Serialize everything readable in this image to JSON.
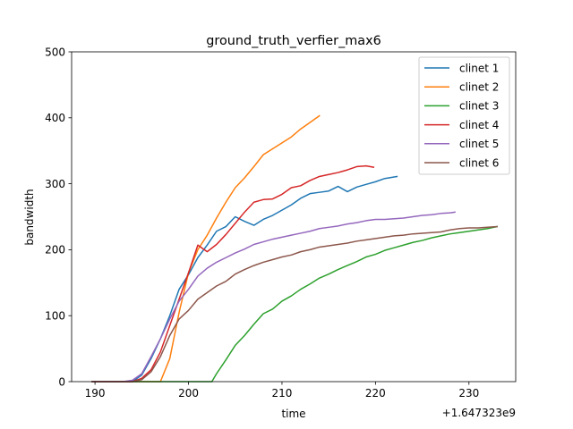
{
  "chart_data": {
    "type": "line",
    "title": "ground_truth_verfier_max6",
    "xlabel": "time",
    "ylabel": "bandwidth",
    "x_offset_label": "+1.647323e9",
    "xlim": [
      187.5,
      235.0
    ],
    "ylim": [
      0,
      500
    ],
    "xticks": [
      190,
      200,
      210,
      220,
      230
    ],
    "xtick_labels": [
      "190",
      "200",
      "210",
      "220",
      "230"
    ],
    "yticks": [
      0,
      100,
      200,
      300,
      400,
      500
    ],
    "ytick_labels": [
      "0",
      "100",
      "200",
      "300",
      "400",
      "500"
    ],
    "grid": false,
    "legend_position": "top-right",
    "series": [
      {
        "name": "clinet 1",
        "color": "#1f77b4",
        "x": [
          189.7,
          193.0,
          194.0,
          195.0,
          196.0,
          197.0,
          198.0,
          199.0,
          200.0,
          201.0,
          202.0,
          203.0,
          204.0,
          205.0,
          206.0,
          207.0,
          208.0,
          209.0,
          210.0,
          211.0,
          212.0,
          213.0,
          214.0,
          215.0,
          216.0,
          217.0,
          218.0,
          219.0,
          220.0,
          221.0,
          222.3
        ],
        "y": [
          0,
          0,
          0,
          10,
          35,
          65,
          100,
          140,
          162,
          188,
          207,
          228,
          235,
          250,
          243,
          237,
          246,
          252,
          260,
          268,
          278,
          285,
          287,
          289,
          296,
          288,
          295,
          299,
          303,
          308,
          311
        ]
      },
      {
        "name": "clinet 2",
        "color": "#ff7f0e",
        "x": [
          189.7,
          193.0,
          196.0,
          197.0,
          198.0,
          199.0,
          200.0,
          201.0,
          202.0,
          203.0,
          204.0,
          205.0,
          206.0,
          207.0,
          208.0,
          209.0,
          210.0,
          211.0,
          212.0,
          213.0,
          214.0
        ],
        "y": [
          0,
          0,
          0,
          0,
          35,
          105,
          165,
          200,
          222,
          248,
          272,
          294,
          309,
          326,
          344,
          353,
          362,
          371,
          383,
          393,
          403
        ]
      },
      {
        "name": "clinet 3",
        "color": "#2ca02c",
        "x": [
          189.7,
          195.0,
          202.5,
          203.0,
          204.0,
          205.0,
          206.0,
          207.0,
          208.0,
          209.0,
          210.0,
          211.0,
          212.0,
          213.0,
          214.0,
          215.0,
          216.0,
          217.0,
          218.0,
          219.0,
          220.0,
          221.0,
          222.0,
          223.0,
          224.0,
          225.0,
          226.0,
          227.0,
          228.0,
          229.0,
          230.0,
          231.0,
          232.0,
          233.0
        ],
        "y": [
          0,
          0,
          0,
          12,
          33,
          55,
          70,
          87,
          103,
          110,
          122,
          130,
          140,
          148,
          157,
          163,
          170,
          176,
          182,
          189,
          193,
          199,
          203,
          207,
          211,
          214,
          218,
          221,
          224,
          226,
          228,
          230,
          232,
          235
        ]
      },
      {
        "name": "clinet 4",
        "color": "#d62728",
        "x": [
          189.7,
          194.0,
          195.0,
          196.0,
          197.0,
          198.0,
          199.0,
          200.0,
          201.0,
          202.0,
          203.0,
          204.0,
          205.0,
          206.0,
          207.0,
          208.0,
          209.0,
          210.0,
          211.0,
          212.0,
          213.0,
          214.0,
          215.0,
          216.0,
          217.0,
          218.0,
          219.0,
          219.8
        ],
        "y": [
          0,
          0,
          5,
          18,
          45,
          85,
          125,
          165,
          207,
          197,
          208,
          223,
          240,
          257,
          272,
          276,
          277,
          284,
          294,
          297,
          305,
          311,
          314,
          317,
          321,
          326,
          327,
          325
        ]
      },
      {
        "name": "clinet 5",
        "color": "#9467bd",
        "x": [
          189.7,
          193.0,
          194.0,
          195.0,
          196.0,
          197.0,
          198.0,
          199.0,
          200.0,
          201.0,
          202.0,
          203.0,
          204.0,
          205.0,
          206.0,
          207.0,
          208.0,
          209.0,
          210.0,
          211.0,
          212.0,
          213.0,
          214.0,
          215.0,
          216.0,
          217.0,
          218.0,
          219.0,
          220.0,
          221.0,
          222.0,
          223.0,
          224.0,
          225.0,
          226.0,
          227.0,
          228.0,
          228.5
        ],
        "y": [
          0,
          0,
          2,
          12,
          38,
          65,
          95,
          122,
          140,
          160,
          172,
          181,
          188,
          195,
          201,
          208,
          212,
          216,
          219,
          222,
          225,
          228,
          232,
          234,
          236,
          239,
          241,
          244,
          246,
          246,
          247,
          248,
          250,
          252,
          253,
          255,
          256,
          257
        ]
      },
      {
        "name": "clinet 6",
        "color": "#8c564b",
        "x": [
          189.7,
          194.0,
          195.0,
          196.0,
          197.0,
          198.0,
          199.0,
          200.0,
          201.0,
          202.0,
          203.0,
          204.0,
          205.0,
          206.0,
          207.0,
          208.0,
          209.0,
          210.0,
          211.0,
          212.0,
          213.0,
          214.0,
          215.0,
          216.0,
          217.0,
          218.0,
          219.0,
          220.0,
          221.0,
          222.0,
          223.0,
          224.0,
          225.0,
          226.0,
          227.0,
          228.0,
          229.0,
          230.0,
          231.0,
          232.0,
          233.0
        ],
        "y": [
          0,
          0,
          3,
          15,
          38,
          70,
          95,
          108,
          125,
          135,
          145,
          152,
          163,
          170,
          176,
          181,
          185,
          189,
          192,
          197,
          200,
          204,
          206,
          208,
          210,
          213,
          215,
          217,
          219,
          221,
          222,
          224,
          225,
          226,
          227,
          230,
          232,
          233,
          233,
          234,
          235
        ]
      }
    ]
  }
}
